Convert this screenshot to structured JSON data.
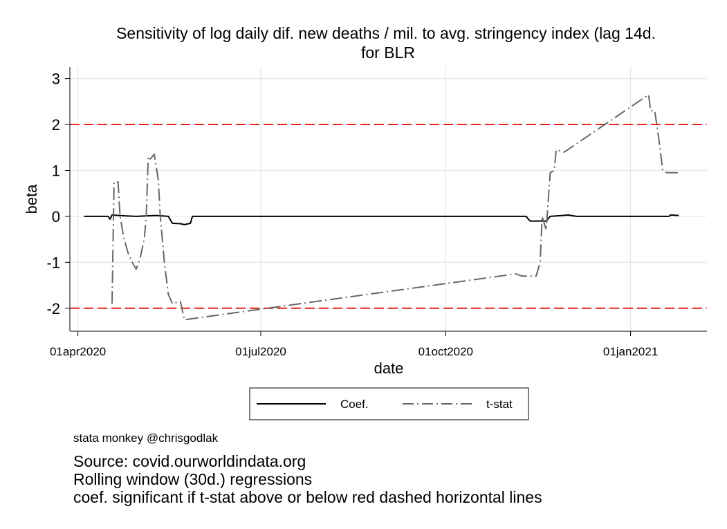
{
  "chart_data": {
    "type": "line",
    "title": "Sensitivity of log daily dif. new deaths / mil. to avg. stringency index (lag 14d.",
    "subtitle": "for BLR",
    "xlabel": "date",
    "ylabel": "beta",
    "x_ticks": [
      "01apr2020",
      "01jul2020",
      "01oct2020",
      "01jan2021"
    ],
    "y_ticks": [
      3,
      2,
      1,
      0,
      -1,
      -2
    ],
    "xlim": [
      "2020-03-28",
      "2021-02-08"
    ],
    "ylim": [
      -2.5,
      3.25
    ],
    "grid": true,
    "legend_position": "bottom",
    "reference_lines": [
      {
        "y": 2,
        "color": "#e8211c",
        "style": "dashed"
      },
      {
        "y": -2,
        "color": "#e8211c",
        "style": "dashed"
      }
    ],
    "series": [
      {
        "name": "Coef.",
        "color": "#000000",
        "style": "solid",
        "points": [
          [
            "2020-04-04",
            0.0
          ],
          [
            "2020-04-16",
            0.0
          ],
          [
            "2020-04-17",
            -0.06
          ],
          [
            "2020-04-18",
            0.03
          ],
          [
            "2020-04-25",
            0.01
          ],
          [
            "2020-04-30",
            0.0
          ],
          [
            "2020-05-05",
            0.01
          ],
          [
            "2020-05-10",
            0.02
          ],
          [
            "2020-05-16",
            0.0
          ],
          [
            "2020-05-18",
            -0.15
          ],
          [
            "2020-05-22",
            -0.16
          ],
          [
            "2020-05-24",
            -0.18
          ],
          [
            "2020-05-27",
            -0.15
          ],
          [
            "2020-05-28",
            0.0
          ],
          [
            "2020-11-10",
            0.0
          ],
          [
            "2020-11-12",
            -0.1
          ],
          [
            "2020-11-20",
            -0.1
          ],
          [
            "2020-11-22",
            0.0
          ],
          [
            "2020-11-28",
            0.02
          ],
          [
            "2020-12-01",
            0.03
          ],
          [
            "2020-12-05",
            0.0
          ],
          [
            "2021-01-20",
            0.0
          ],
          [
            "2021-01-21",
            0.03
          ],
          [
            "2021-01-25",
            0.02
          ]
        ]
      },
      {
        "name": "t-stat",
        "color": "#666666",
        "style": "longdash-dot",
        "points": [
          [
            "2020-04-18",
            -1.9
          ],
          [
            "2020-04-19",
            0.75
          ],
          [
            "2020-04-21",
            0.75
          ],
          [
            "2020-04-22",
            0.0
          ],
          [
            "2020-04-24",
            -0.5
          ],
          [
            "2020-04-26",
            -0.8
          ],
          [
            "2020-04-28",
            -1.0
          ],
          [
            "2020-04-30",
            -1.15
          ],
          [
            "2020-05-02",
            -0.9
          ],
          [
            "2020-05-04",
            -0.5
          ],
          [
            "2020-05-05",
            0.0
          ],
          [
            "2020-05-06",
            1.3
          ],
          [
            "2020-05-07",
            1.25
          ],
          [
            "2020-05-09",
            1.35
          ],
          [
            "2020-05-11",
            0.8
          ],
          [
            "2020-05-12",
            0.0
          ],
          [
            "2020-05-14",
            -1.0
          ],
          [
            "2020-05-16",
            -1.7
          ],
          [
            "2020-05-18",
            -1.9
          ],
          [
            "2020-05-22",
            -1.85
          ],
          [
            "2020-05-24",
            -2.25
          ],
          [
            "2020-11-05",
            -1.25
          ],
          [
            "2020-11-08",
            -1.3
          ],
          [
            "2020-11-15",
            -1.3
          ],
          [
            "2020-11-17",
            -1.0
          ],
          [
            "2020-11-18",
            0.0
          ],
          [
            "2020-11-20",
            -0.3
          ],
          [
            "2020-11-22",
            0.95
          ],
          [
            "2020-11-24",
            1.0
          ],
          [
            "2020-11-25",
            1.45
          ],
          [
            "2020-11-29",
            1.4
          ],
          [
            "2021-01-10",
            2.65
          ],
          [
            "2021-01-11",
            2.3
          ],
          [
            "2021-01-13",
            2.3
          ],
          [
            "2021-01-15",
            1.7
          ],
          [
            "2021-01-17",
            1.0
          ],
          [
            "2021-01-19",
            0.95
          ],
          [
            "2021-01-26",
            0.95
          ]
        ]
      }
    ]
  },
  "legend": {
    "items": [
      {
        "label": "Coef.",
        "color": "#000000",
        "style": "solid"
      },
      {
        "label": "t-stat",
        "color": "#666666",
        "style": "longdash-dot"
      }
    ]
  },
  "notes": {
    "credit": "stata monkey @chrisgodlak",
    "lines": [
      "Source: covid.ourworldindata.org",
      "Rolling window (30d.) regressions",
      "coef. significant if t-stat above or below red dashed horizontal lines"
    ]
  }
}
